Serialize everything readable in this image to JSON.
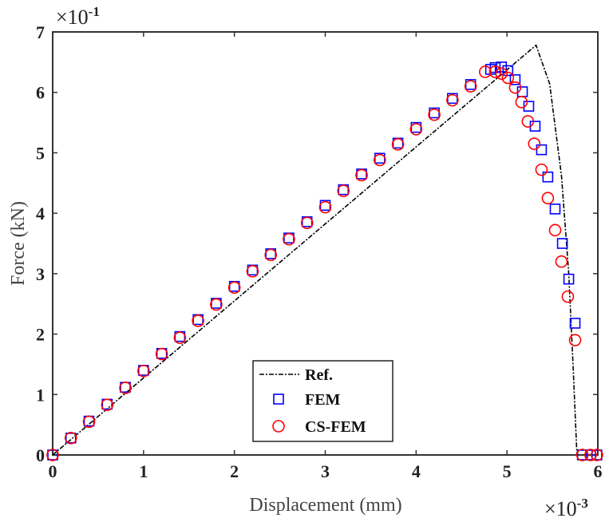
{
  "chart_data": {
    "type": "scatter",
    "title": "",
    "xlabel": "Displacement (mm)",
    "ylabel": "Force (kN)",
    "x_multiplier": "×10",
    "x_multiplier_exp": "-3",
    "y_multiplier": "×10",
    "y_multiplier_exp": "-1",
    "xlim": [
      0,
      6
    ],
    "ylim": [
      0,
      7
    ],
    "xticks": [
      "0",
      "1",
      "2",
      "3",
      "4",
      "5",
      "6"
    ],
    "yticks": [
      "0",
      "1",
      "2",
      "3",
      "4",
      "5",
      "6",
      "7"
    ],
    "grid": false,
    "legend_position": "bottom-center",
    "series": [
      {
        "name": "Ref.",
        "style": "dash-dot line",
        "color": "#000000",
        "x": [
          0,
          5.32,
          5.47,
          5.6,
          5.68,
          5.73,
          5.77
        ],
        "y": [
          0,
          6.78,
          6.14,
          4.62,
          3.0,
          1.4,
          0
        ]
      },
      {
        "name": "FEM",
        "style": "square",
        "color": "#0000ff",
        "x": [
          0,
          0.2,
          0.4,
          0.6,
          0.8,
          1.0,
          1.2,
          1.4,
          1.6,
          1.8,
          2.0,
          2.2,
          2.4,
          2.6,
          2.8,
          3.0,
          3.2,
          3.4,
          3.6,
          3.8,
          4.0,
          4.2,
          4.4,
          4.6,
          4.82,
          4.87,
          4.94,
          5.01,
          5.09,
          5.17,
          5.24,
          5.31,
          5.38,
          5.45,
          5.53,
          5.61,
          5.68,
          5.75,
          5.83,
          5.92,
          5.99
        ],
        "y": [
          0,
          0.28,
          0.56,
          0.84,
          1.12,
          1.4,
          1.68,
          1.96,
          2.24,
          2.51,
          2.79,
          3.06,
          3.33,
          3.59,
          3.86,
          4.13,
          4.39,
          4.65,
          4.91,
          5.16,
          5.42,
          5.66,
          5.9,
          6.13,
          6.38,
          6.41,
          6.42,
          6.36,
          6.21,
          6.01,
          5.77,
          5.44,
          5.05,
          4.6,
          4.07,
          3.5,
          2.91,
          2.18,
          0,
          0,
          0
        ]
      },
      {
        "name": "CS-FEM",
        "style": "circle",
        "color": "#ff0000",
        "x": [
          0,
          0.2,
          0.4,
          0.6,
          0.8,
          1.0,
          1.2,
          1.4,
          1.6,
          1.8,
          2.0,
          2.2,
          2.4,
          2.6,
          2.8,
          3.0,
          3.2,
          3.4,
          3.6,
          3.8,
          4.0,
          4.2,
          4.4,
          4.6,
          4.76,
          4.87,
          4.94,
          5.01,
          5.09,
          5.16,
          5.23,
          5.3,
          5.38,
          5.45,
          5.53,
          5.6,
          5.67,
          5.75,
          5.83,
          5.92,
          5.99
        ],
        "y": [
          0,
          0.28,
          0.55,
          0.83,
          1.11,
          1.39,
          1.67,
          1.94,
          2.22,
          2.49,
          2.77,
          3.04,
          3.31,
          3.57,
          3.84,
          4.1,
          4.37,
          4.63,
          4.88,
          5.14,
          5.39,
          5.63,
          5.87,
          6.1,
          6.34,
          6.34,
          6.31,
          6.24,
          6.08,
          5.84,
          5.52,
          5.15,
          4.72,
          4.25,
          3.72,
          3.2,
          2.62,
          1.9,
          0,
          0,
          0
        ]
      }
    ]
  }
}
